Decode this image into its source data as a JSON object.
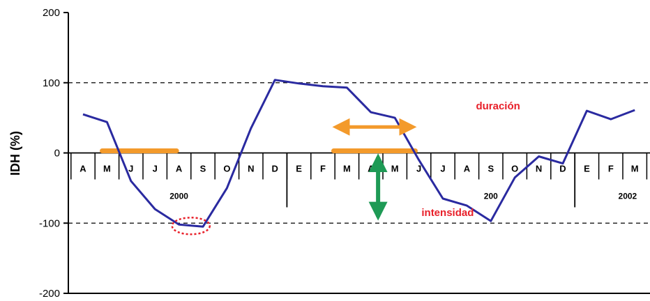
{
  "chart_data": {
    "type": "line",
    "ylabel": "IDH (%)",
    "ylim": [
      -200,
      200
    ],
    "yticks": [
      200,
      100,
      0,
      -100,
      -200
    ],
    "reference_lines": [
      100,
      -100
    ],
    "categories": [
      "A",
      "M",
      "J",
      "J",
      "A",
      "S",
      "O",
      "N",
      "D",
      "E",
      "F",
      "M",
      "A",
      "M",
      "J",
      "J",
      "A",
      "S",
      "O",
      "N",
      "D",
      "E",
      "F",
      "M"
    ],
    "years": [
      {
        "label": "2000",
        "center_index": 7
      },
      {
        "label": "200",
        "center_index": 19.5
      },
      {
        "label": "2002",
        "center_index": 23.5
      }
    ],
    "series": [
      {
        "color": "#2a2aa0",
        "values": [
          55,
          44,
          -40,
          -80,
          -102,
          -105,
          -50,
          35,
          104,
          99,
          95,
          93,
          58,
          50,
          -10,
          -65,
          -75,
          -97,
          -35,
          -5,
          -15,
          60,
          48,
          61
        ]
      }
    ],
    "annotations": {
      "duration_label": "duración",
      "intensity_label": "intensidad",
      "drought_periods": [
        [
          1.6,
          7.8
        ],
        [
          20.9,
          27.7
        ]
      ],
      "duration_arrow": [
        20.9,
        27.7
      ],
      "intensity_arrow": {
        "index": 24.6,
        "from": 0,
        "to": -97
      },
      "highlight_min_index": 4.5,
      "highlight_min_value": -104
    },
    "colors": {
      "line": "#2a2aa0",
      "drought_bar": "#f39a2b",
      "duration_arrow": "#f39a2b",
      "intensity_arrow": "#1e9a55",
      "highlight": "#e8202a",
      "annotation_text": "#e8202a"
    }
  }
}
